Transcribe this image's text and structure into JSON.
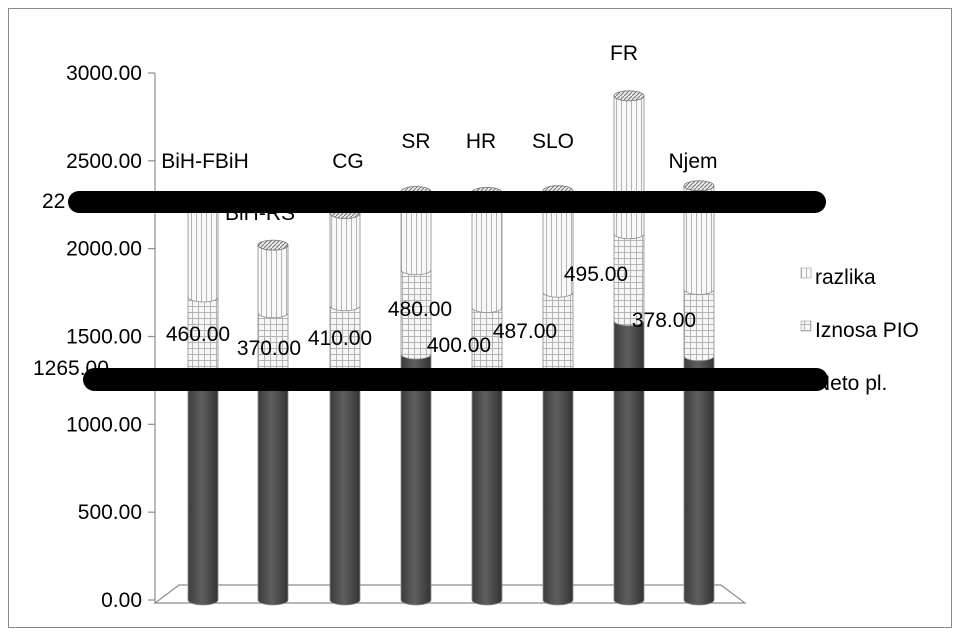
{
  "chart_data": {
    "type": "bar",
    "stacked": true,
    "style": "3d-cylinder",
    "categories": [
      "BiH-FBiH",
      "BiH-RS",
      "CG",
      "SR",
      "HR",
      "SLO",
      "FR",
      "Njem"
    ],
    "category_labels": [
      "BiH-FBiH",
      "BiH-RS",
      "CG",
      "SR",
      "HR",
      "SLO",
      "FR",
      "Njem"
    ],
    "series": [
      {
        "name": "Neto pl.",
        "values": [
          1265,
          1265,
          1265,
          1400,
          1265,
          1265,
          1590,
          1390
        ],
        "color": "#595959",
        "pattern": "solid"
      },
      {
        "name": "Iznosa PIO",
        "values": [
          460,
          370,
          410,
          480,
          400,
          487,
          495,
          378
        ],
        "color": "#f4f4f4",
        "pattern": "grid"
      },
      {
        "name": "razlika",
        "values": [
          520,
          385,
          525,
          445,
          655,
          578,
          785,
          590
        ],
        "color": "#f4f4f4",
        "pattern": "vertical"
      }
    ],
    "data_labels": [
      "460.00",
      "370.00",
      "410.00",
      "480.00",
      "400.00",
      "487.00",
      "495.00",
      "378.00"
    ],
    "annotation_left": "1265.00",
    "annotation_partial": "22",
    "yticks": [
      "0.00",
      "500.00",
      "1000.00",
      "1500.00",
      "2000.00",
      "2500.00",
      "3000.00"
    ],
    "ylim": [
      0,
      3000
    ],
    "legend_order": [
      "razlika",
      "Iznosa PIO",
      "Neto pl."
    ],
    "legend_position": "right",
    "grid": false,
    "redaction_color": "#000000"
  }
}
